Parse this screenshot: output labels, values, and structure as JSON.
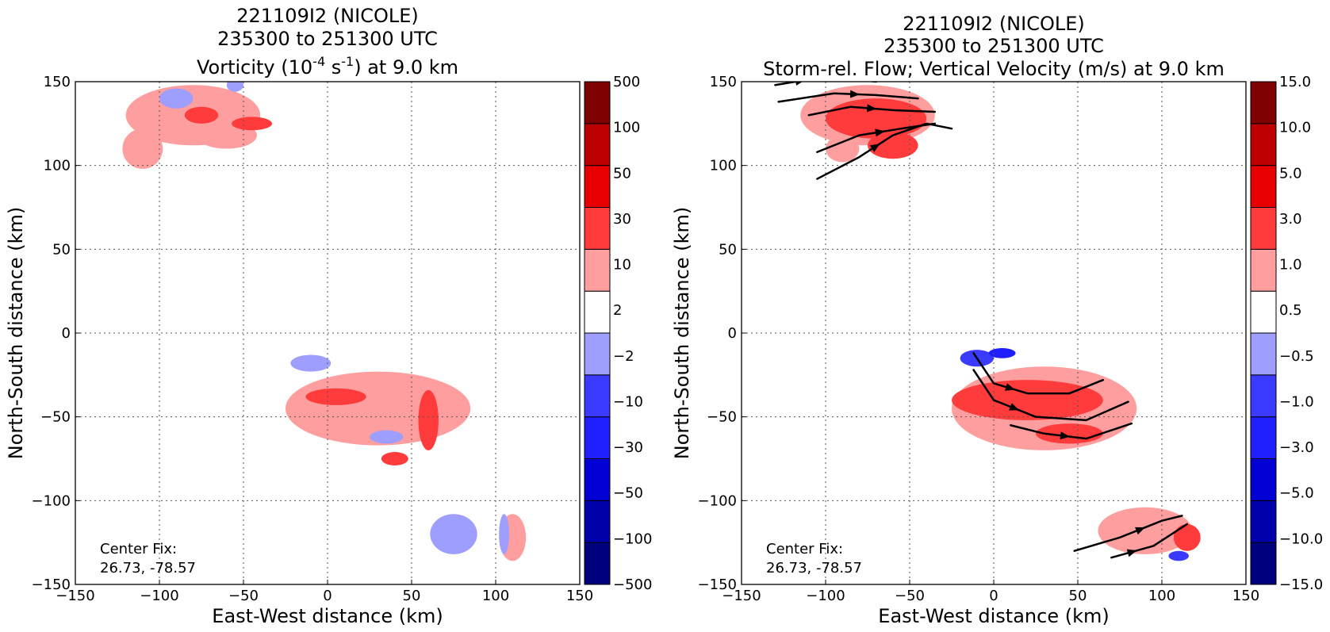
{
  "chart_data": [
    {
      "type": "heatmap",
      "title_lines": [
        "221109I2 (NICOLE)",
        "235300 to 251300 UTC"
      ],
      "title_var_parts": [
        "Vorticity (10",
        "-4",
        " s",
        "-1",
        ") at 9.0 km"
      ],
      "xlabel": "East-West distance (km)",
      "ylabel": "North-South distance (km)",
      "xlim": [
        -150,
        150
      ],
      "ylim": [
        -150,
        150
      ],
      "xticks": [
        "−150",
        "−100",
        "−50",
        "0",
        "50",
        "100",
        "150"
      ],
      "yticks": [
        "−150",
        "−100",
        "−50",
        "0",
        "50",
        "100",
        "150"
      ],
      "grid": true,
      "colorbar_labels": [
        "−500",
        "−100",
        "−50",
        "−30",
        "−10",
        "−2",
        "2",
        "10",
        "30",
        "50",
        "100",
        "500"
      ],
      "colorbar_colors": [
        "#00007f",
        "#0000ab",
        "#0000d5",
        "#1f1fff",
        "#3b3bff",
        "#9e9eff",
        "#ffffff",
        "#ff9e9e",
        "#ff3b3b",
        "#e80000",
        "#bb0000",
        "#7f0000"
      ],
      "annotation": [
        "Center Fix:",
        "26.73, -78.57"
      ],
      "regions": [
        {
          "x": -80,
          "y": 130,
          "rx": 40,
          "ry": 18,
          "level": 7
        },
        {
          "x": -110,
          "y": 110,
          "rx": 12,
          "ry": 12,
          "level": 7
        },
        {
          "x": -60,
          "y": 118,
          "rx": 18,
          "ry": 8,
          "level": 7
        },
        {
          "x": -75,
          "y": 130,
          "rx": 10,
          "ry": 5,
          "level": 8
        },
        {
          "x": -45,
          "y": 125,
          "rx": 12,
          "ry": 4,
          "level": 8
        },
        {
          "x": -90,
          "y": 140,
          "rx": 10,
          "ry": 6,
          "level": 5
        },
        {
          "x": -55,
          "y": 148,
          "rx": 5,
          "ry": 4,
          "level": 5
        },
        {
          "x": 30,
          "y": -45,
          "rx": 55,
          "ry": 22,
          "level": 7
        },
        {
          "x": 5,
          "y": -38,
          "rx": 18,
          "ry": 5,
          "level": 8
        },
        {
          "x": 60,
          "y": -52,
          "rx": 6,
          "ry": 18,
          "level": 8
        },
        {
          "x": -10,
          "y": -18,
          "rx": 12,
          "ry": 5,
          "level": 5
        },
        {
          "x": 35,
          "y": -62,
          "rx": 10,
          "ry": 4,
          "level": 5
        },
        {
          "x": 40,
          "y": -75,
          "rx": 8,
          "ry": 4,
          "level": 8
        },
        {
          "x": 75,
          "y": -120,
          "rx": 14,
          "ry": 12,
          "level": 5
        },
        {
          "x": 110,
          "y": -122,
          "rx": 8,
          "ry": 14,
          "level": 7
        },
        {
          "x": 105,
          "y": -120,
          "rx": 3,
          "ry": 12,
          "level": 5
        }
      ]
    },
    {
      "type": "heatmap",
      "title_lines": [
        "221109I2 (NICOLE)",
        "235300 to 251300 UTC",
        "Storm-rel. Flow; Vertical Velocity (m/s) at 9.0 km"
      ],
      "xlabel": "East-West distance (km)",
      "ylabel": "North-South distance (km)",
      "xlim": [
        -150,
        150
      ],
      "ylim": [
        -150,
        150
      ],
      "xticks": [
        "−150",
        "−100",
        "−50",
        "0",
        "50",
        "100",
        "150"
      ],
      "yticks": [
        "−150",
        "−100",
        "−50",
        "0",
        "50",
        "100",
        "150"
      ],
      "grid": true,
      "colorbar_labels": [
        "−15.0",
        "−10.0",
        "−5.0",
        "−3.0",
        "−1.0",
        "−0.5",
        "0.5",
        "1.0",
        "3.0",
        "5.0",
        "10.0",
        "15.0"
      ],
      "colorbar_colors": [
        "#00007f",
        "#0000ab",
        "#0000d5",
        "#1f1fff",
        "#3b3bff",
        "#9e9eff",
        "#ffffff",
        "#ff9e9e",
        "#ff3b3b",
        "#e80000",
        "#bb0000",
        "#7f0000"
      ],
      "annotation": [
        "Center Fix:",
        "26.73, -78.57"
      ],
      "regions": [
        {
          "x": -75,
          "y": 130,
          "rx": 40,
          "ry": 18,
          "level": 7
        },
        {
          "x": -70,
          "y": 128,
          "rx": 30,
          "ry": 12,
          "level": 8
        },
        {
          "x": -60,
          "y": 112,
          "rx": 15,
          "ry": 8,
          "level": 8
        },
        {
          "x": -90,
          "y": 110,
          "rx": 10,
          "ry": 8,
          "level": 7
        },
        {
          "x": 30,
          "y": -45,
          "rx": 55,
          "ry": 25,
          "level": 7
        },
        {
          "x": 20,
          "y": -40,
          "rx": 45,
          "ry": 12,
          "level": 8
        },
        {
          "x": 45,
          "y": -60,
          "rx": 20,
          "ry": 6,
          "level": 8
        },
        {
          "x": -10,
          "y": -15,
          "rx": 10,
          "ry": 5,
          "level": 4
        },
        {
          "x": 5,
          "y": -12,
          "rx": 8,
          "ry": 3,
          "level": 3
        },
        {
          "x": 90,
          "y": -118,
          "rx": 28,
          "ry": 14,
          "level": 7
        },
        {
          "x": 115,
          "y": -122,
          "rx": 8,
          "ry": 8,
          "level": 8
        },
        {
          "x": 110,
          "y": -133,
          "rx": 6,
          "ry": 3,
          "level": 4
        }
      ],
      "streamlines": [
        [
          [
            -130,
            148
          ],
          [
            -100,
            153
          ],
          [
            -70,
            150
          ]
        ],
        [
          [
            -128,
            138
          ],
          [
            -95,
            143
          ],
          [
            -70,
            142
          ],
          [
            -45,
            140
          ]
        ],
        [
          [
            -110,
            130
          ],
          [
            -85,
            135
          ],
          [
            -60,
            133
          ],
          [
            -35,
            132
          ]
        ],
        [
          [
            -105,
            108
          ],
          [
            -80,
            118
          ],
          [
            -55,
            122
          ],
          [
            -35,
            125
          ]
        ],
        [
          [
            -105,
            92
          ],
          [
            -80,
            105
          ],
          [
            -60,
            118
          ],
          [
            -40,
            125
          ],
          [
            -25,
            122
          ]
        ],
        [
          [
            -12,
            -12
          ],
          [
            0,
            -30
          ],
          [
            20,
            -36
          ],
          [
            45,
            -36
          ],
          [
            65,
            -28
          ]
        ],
        [
          [
            -12,
            -22
          ],
          [
            0,
            -40
          ],
          [
            25,
            -50
          ],
          [
            55,
            -52
          ],
          [
            80,
            -41
          ]
        ],
        [
          [
            10,
            -55
          ],
          [
            30,
            -60
          ],
          [
            55,
            -63
          ],
          [
            82,
            -54
          ]
        ],
        [
          [
            48,
            -130
          ],
          [
            75,
            -122
          ],
          [
            100,
            -112
          ],
          [
            112,
            -109
          ]
        ],
        [
          [
            70,
            -134
          ],
          [
            95,
            -127
          ],
          [
            115,
            -114
          ]
        ]
      ]
    }
  ]
}
